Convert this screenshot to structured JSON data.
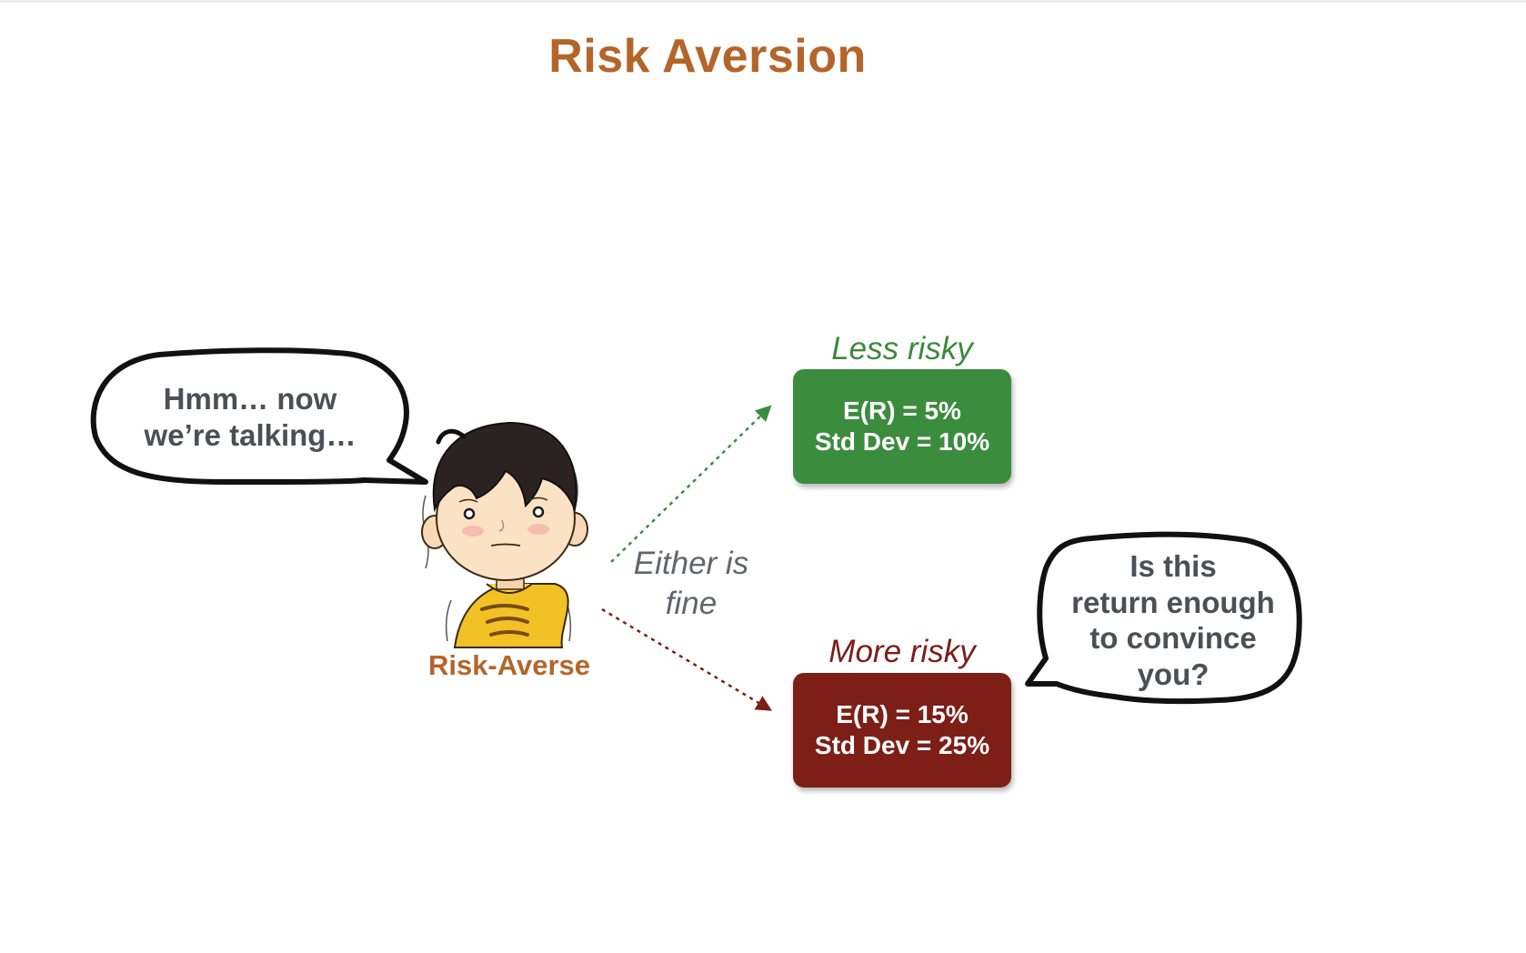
{
  "slide": {
    "title": "Risk Aversion"
  },
  "character": {
    "label": "Risk-Averse",
    "icon": "worried-boy-icon",
    "colors": {
      "hair": "#2a2223",
      "skin": "#fbe2c4",
      "shirt": "#f2c126"
    }
  },
  "speech_left": {
    "line1": "Hmm… now",
    "line2": "we’re talking…"
  },
  "middle_label": {
    "line1": "Either is",
    "line2": "fine"
  },
  "options": {
    "less_risky": {
      "label": "Less risky",
      "return_text": "E(R) = 5%",
      "stddev_text": "Std Dev = 10%",
      "color": "#3c8c3e"
    },
    "more_risky": {
      "label": "More risky",
      "return_text": "E(R) = 15%",
      "stddev_text": "Std Dev = 25%",
      "color": "#7d1f16"
    }
  },
  "speech_right": {
    "line1": "Is this",
    "line2": "return enough",
    "line3": "to convince",
    "line4": "you?"
  }
}
